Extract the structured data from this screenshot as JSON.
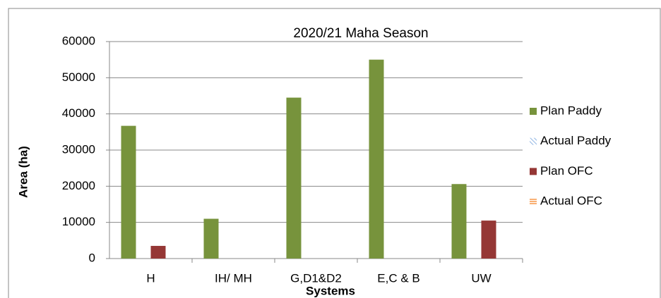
{
  "chart_data": {
    "type": "bar",
    "title": "2020/21  Maha Season",
    "x_label": "Systems",
    "y_label": "Area (ha)",
    "categories": [
      "H",
      "IH/ MH",
      "G,D1&D2",
      "E,C & B",
      "UW"
    ],
    "series": [
      {
        "name": "Plan Paddy",
        "color": "#77933c",
        "values": [
          36700,
          11000,
          44500,
          55000,
          20600
        ]
      },
      {
        "name": "Actual Paddy",
        "color": "#8eb4e3",
        "pattern": "diagonal",
        "values": [
          null,
          null,
          null,
          null,
          null
        ]
      },
      {
        "name": "Plan OFC",
        "color": "#953735",
        "values": [
          3500,
          null,
          null,
          null,
          10500
        ]
      },
      {
        "name": "Actual OFC",
        "color": "#f79646",
        "pattern": "horizontal",
        "values": [
          null,
          null,
          null,
          null,
          null
        ]
      }
    ],
    "ylim": [
      0,
      60000
    ],
    "yticks": [
      0,
      10000,
      20000,
      30000,
      40000,
      50000,
      60000
    ],
    "grid": true,
    "legend": "right"
  }
}
